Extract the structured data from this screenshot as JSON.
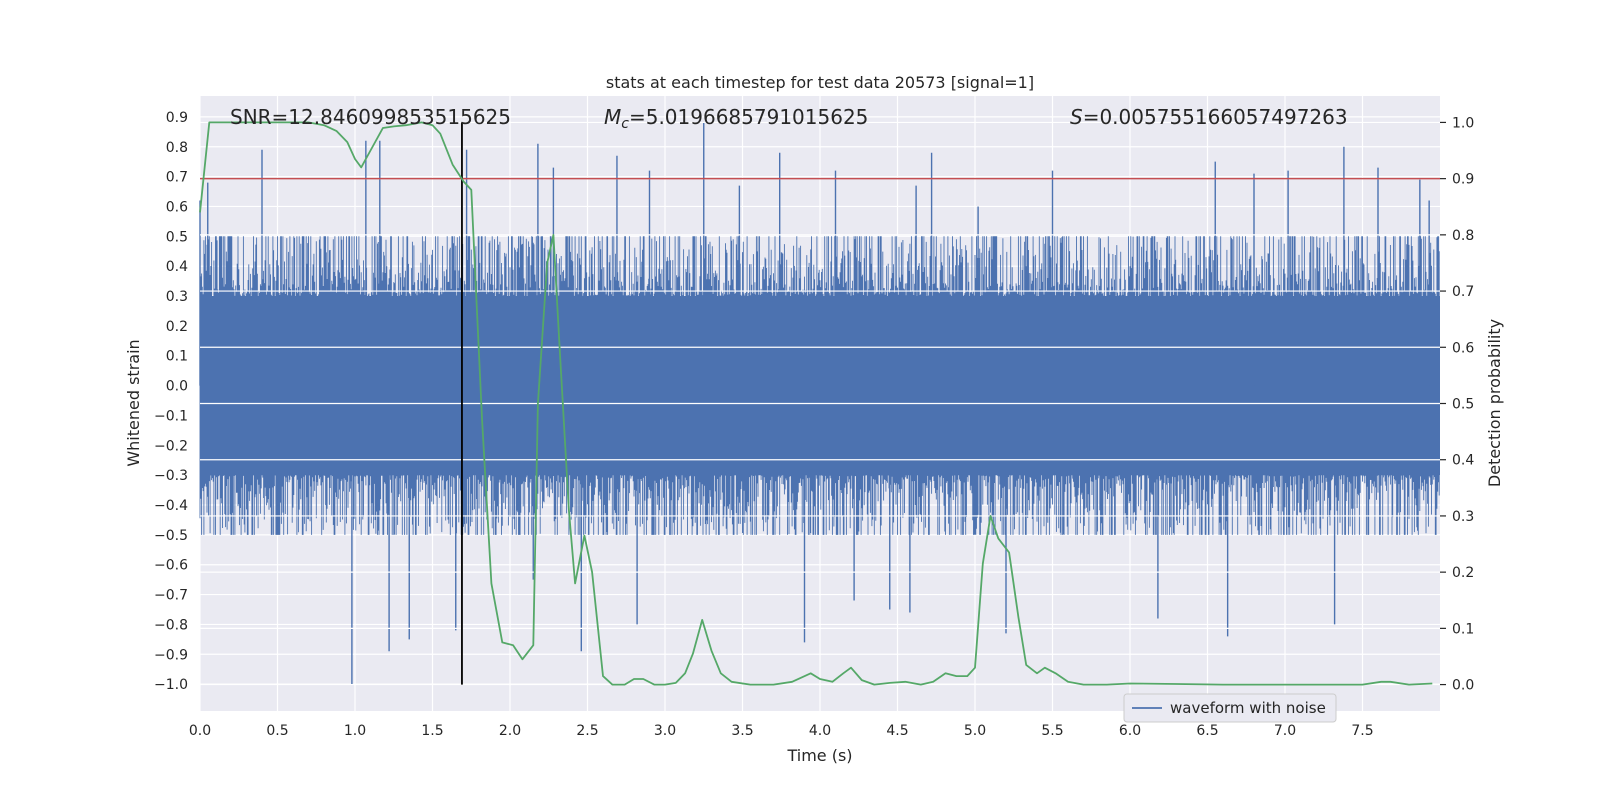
{
  "chart_data": {
    "type": "line",
    "title": "stats at each timestep for test data 20573 [signal=1]",
    "xlabel": "Time (s)",
    "ylabel": "Whitened strain",
    "ylabel_right": "Detection probability",
    "xlim": [
      0.0,
      8.0
    ],
    "ylim": [
      -1.09,
      0.97
    ],
    "ylim_right": [
      -0.047,
      1.047
    ],
    "x_ticks": [
      "0.0",
      "0.5",
      "1.0",
      "1.5",
      "2.0",
      "2.5",
      "3.0",
      "3.5",
      "4.0",
      "4.5",
      "5.0",
      "5.5",
      "6.0",
      "6.5",
      "7.0",
      "7.5"
    ],
    "y_ticks": [
      "0.9",
      "0.8",
      "0.7",
      "0.6",
      "0.5",
      "0.4",
      "0.3",
      "0.2",
      "0.1",
      "0.0",
      "−0.1",
      "−0.2",
      "−0.3",
      "−0.4",
      "−0.5",
      "−0.6",
      "−0.7",
      "−0.8",
      "−0.9",
      "−1.0"
    ],
    "y_ticks_right": [
      "1.0",
      "0.9",
      "0.8",
      "0.7",
      "0.6",
      "0.5",
      "0.4",
      "0.3",
      "0.2",
      "0.1",
      "0.0"
    ],
    "grid": true,
    "legend": {
      "position": "lower-right",
      "entries": [
        "waveform with noise"
      ]
    },
    "annotations": {
      "snr": "SNR=12.846099853515625",
      "mc_symbol": "M",
      "mc_sub": "c",
      "mc_value": "=5.0196685791015625",
      "s_symbol": "S",
      "s_value": "=0.005755166057497263"
    },
    "threshold_right": 0.9,
    "vline_x": 1.69,
    "series": [
      {
        "name": "waveform with noise",
        "color": "#4c72b0",
        "axis": "left",
        "samples": 4096,
        "duration": 8.0,
        "core_amplitude": 0.3,
        "envelope_max": 0.5,
        "spikes": [
          [
            0.0,
            0.62
          ],
          [
            0.05,
            0.68
          ],
          [
            0.4,
            0.79
          ],
          [
            0.98,
            -1.0
          ],
          [
            1.07,
            0.82
          ],
          [
            1.16,
            0.82
          ],
          [
            1.22,
            -0.89
          ],
          [
            1.35,
            -0.85
          ],
          [
            1.65,
            -0.82
          ],
          [
            1.72,
            0.79
          ],
          [
            2.15,
            -0.65
          ],
          [
            2.18,
            0.81
          ],
          [
            2.28,
            0.73
          ],
          [
            2.46,
            -0.89
          ],
          [
            2.69,
            0.77
          ],
          [
            2.82,
            -0.8
          ],
          [
            2.9,
            0.72
          ],
          [
            3.25,
            0.88
          ],
          [
            3.48,
            0.67
          ],
          [
            3.74,
            0.78
          ],
          [
            3.9,
            -0.86
          ],
          [
            4.1,
            0.72
          ],
          [
            4.22,
            -0.72
          ],
          [
            4.45,
            -0.75
          ],
          [
            4.58,
            -0.76
          ],
          [
            4.62,
            0.67
          ],
          [
            4.72,
            0.78
          ],
          [
            5.02,
            0.6
          ],
          [
            5.2,
            -0.83
          ],
          [
            5.5,
            0.72
          ],
          [
            6.18,
            -0.78
          ],
          [
            6.55,
            0.75
          ],
          [
            6.63,
            -0.84
          ],
          [
            6.8,
            0.71
          ],
          [
            7.02,
            0.72
          ],
          [
            7.32,
            -0.8
          ],
          [
            7.38,
            0.8
          ],
          [
            7.6,
            0.73
          ],
          [
            7.87,
            0.69
          ],
          [
            7.93,
            0.62
          ]
        ]
      },
      {
        "name": "detection probability",
        "color": "#55a868",
        "axis": "right",
        "points": [
          [
            0.0,
            0.84
          ],
          [
            0.06,
            1.0
          ],
          [
            0.15,
            1.0
          ],
          [
            0.3,
            1.0
          ],
          [
            0.5,
            1.0
          ],
          [
            0.7,
            1.0
          ],
          [
            0.8,
            0.995
          ],
          [
            0.88,
            0.985
          ],
          [
            0.95,
            0.965
          ],
          [
            1.0,
            0.935
          ],
          [
            1.04,
            0.92
          ],
          [
            1.1,
            0.95
          ],
          [
            1.18,
            0.99
          ],
          [
            1.25,
            0.993
          ],
          [
            1.33,
            0.995
          ],
          [
            1.43,
            1.0
          ],
          [
            1.5,
            0.995
          ],
          [
            1.55,
            0.98
          ],
          [
            1.63,
            0.925
          ],
          [
            1.7,
            0.895
          ],
          [
            1.75,
            0.88
          ],
          [
            1.82,
            0.47
          ],
          [
            1.88,
            0.18
          ],
          [
            1.95,
            0.075
          ],
          [
            2.02,
            0.07
          ],
          [
            2.08,
            0.045
          ],
          [
            2.15,
            0.07
          ],
          [
            2.18,
            0.5
          ],
          [
            2.24,
            0.75
          ],
          [
            2.28,
            0.8
          ],
          [
            2.32,
            0.6
          ],
          [
            2.38,
            0.31
          ],
          [
            2.42,
            0.18
          ],
          [
            2.48,
            0.265
          ],
          [
            2.53,
            0.2
          ],
          [
            2.6,
            0.015
          ],
          [
            2.66,
            0.0
          ],
          [
            2.74,
            0.0
          ],
          [
            2.8,
            0.01
          ],
          [
            2.86,
            0.01
          ],
          [
            2.93,
            0.0
          ],
          [
            3.0,
            0.0
          ],
          [
            3.07,
            0.003
          ],
          [
            3.13,
            0.02
          ],
          [
            3.18,
            0.055
          ],
          [
            3.24,
            0.115
          ],
          [
            3.3,
            0.06
          ],
          [
            3.36,
            0.02
          ],
          [
            3.43,
            0.005
          ],
          [
            3.55,
            0.0
          ],
          [
            3.7,
            0.0
          ],
          [
            3.82,
            0.005
          ],
          [
            3.94,
            0.02
          ],
          [
            4.0,
            0.01
          ],
          [
            4.08,
            0.005
          ],
          [
            4.15,
            0.02
          ],
          [
            4.2,
            0.03
          ],
          [
            4.27,
            0.008
          ],
          [
            4.35,
            0.0
          ],
          [
            4.45,
            0.003
          ],
          [
            4.55,
            0.005
          ],
          [
            4.65,
            0.0
          ],
          [
            4.73,
            0.005
          ],
          [
            4.81,
            0.02
          ],
          [
            4.88,
            0.015
          ],
          [
            4.95,
            0.015
          ],
          [
            5.0,
            0.03
          ],
          [
            5.05,
            0.215
          ],
          [
            5.1,
            0.3
          ],
          [
            5.15,
            0.26
          ],
          [
            5.22,
            0.235
          ],
          [
            5.28,
            0.12
          ],
          [
            5.33,
            0.035
          ],
          [
            5.4,
            0.02
          ],
          [
            5.45,
            0.03
          ],
          [
            5.52,
            0.02
          ],
          [
            5.6,
            0.005
          ],
          [
            5.7,
            0.0
          ],
          [
            5.85,
            0.0
          ],
          [
            6.0,
            0.002
          ],
          [
            6.3,
            0.001
          ],
          [
            6.6,
            0.0
          ],
          [
            7.0,
            0.0
          ],
          [
            7.5,
            0.0
          ],
          [
            7.62,
            0.005
          ],
          [
            7.68,
            0.005
          ],
          [
            7.8,
            0.0
          ],
          [
            7.95,
            0.002
          ]
        ]
      }
    ]
  }
}
